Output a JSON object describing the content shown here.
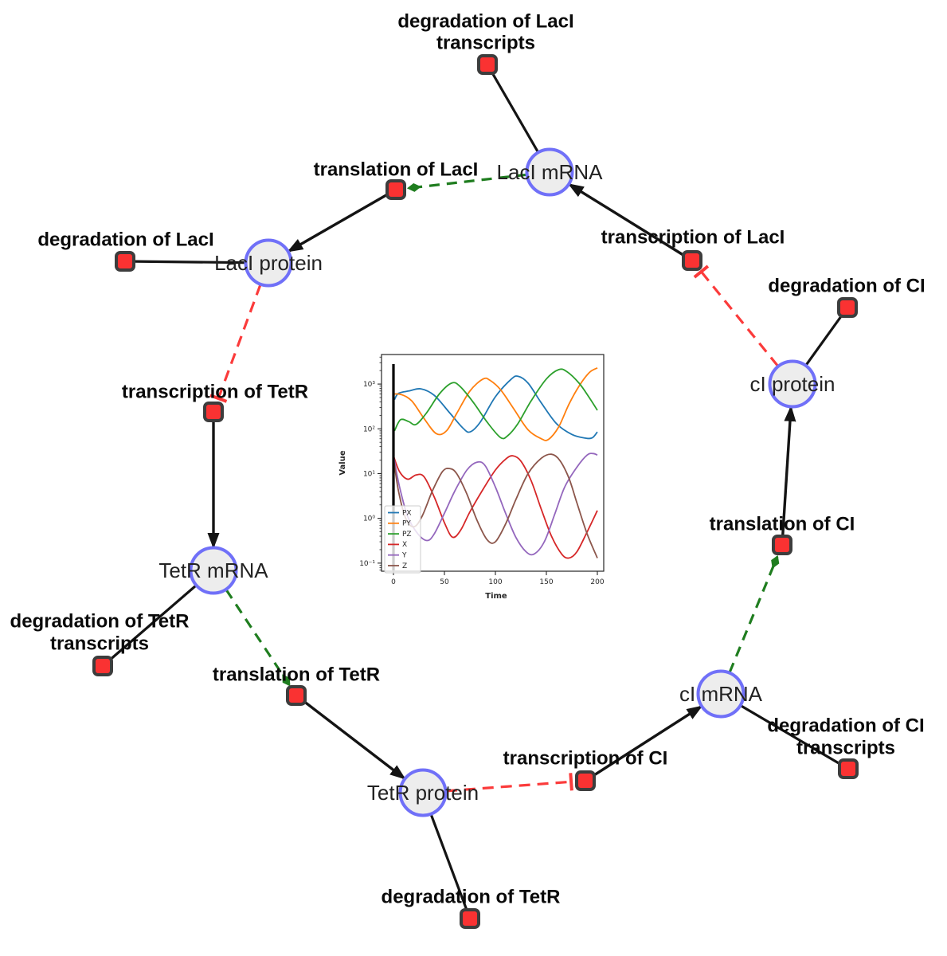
{
  "diagram": {
    "species": [
      {
        "id": "laci-mrna",
        "label": "LacI mRNA"
      },
      {
        "id": "laci-protein",
        "label": "LacI protein"
      },
      {
        "id": "tetr-mrna",
        "label": "TetR mRNA"
      },
      {
        "id": "tetr-protein",
        "label": "TetR protein"
      },
      {
        "id": "ci-mrna",
        "label": "cI mRNA"
      },
      {
        "id": "ci-protein",
        "label": "cI protein"
      }
    ],
    "reactions": [
      {
        "id": "deg-laci-transcripts",
        "lines": [
          "degradation of LacI",
          "transcripts"
        ]
      },
      {
        "id": "translation-laci",
        "lines": [
          "translation of LacI"
        ]
      },
      {
        "id": "transcription-laci",
        "lines": [
          "transcription of LacI"
        ]
      },
      {
        "id": "deg-laci",
        "lines": [
          "degradation of LacI"
        ]
      },
      {
        "id": "transcription-tetr",
        "lines": [
          "transcription of TetR"
        ]
      },
      {
        "id": "deg-tetr-transcripts",
        "lines": [
          "degradation of TetR",
          "transcripts"
        ]
      },
      {
        "id": "translation-tetr",
        "lines": [
          "translation of TetR"
        ]
      },
      {
        "id": "deg-tetr",
        "lines": [
          "degradation of TetR"
        ]
      },
      {
        "id": "transcription-ci",
        "lines": [
          "transcription of CI"
        ]
      },
      {
        "id": "deg-ci-transcripts",
        "lines": [
          "degradation of CI",
          "transcripts"
        ]
      },
      {
        "id": "translation-ci",
        "lines": [
          "translation of CI"
        ]
      },
      {
        "id": "deg-ci",
        "lines": [
          "degradation of CI"
        ]
      }
    ],
    "edge_colors": {
      "product": "#141414",
      "reactant": "#141414",
      "modifier": "#1f7d1f",
      "inhibitor": "#fb3b3b"
    },
    "node_colors": {
      "species_fill": "#ededed",
      "species_stroke": "#7070f8",
      "reaction_fill": "#fa3232",
      "reaction_stroke": "#3d3d3d"
    }
  },
  "chart_data": {
    "type": "line",
    "title": "",
    "xlabel": "Time",
    "ylabel": "Value",
    "x_axis": {
      "min": 0,
      "max": 200,
      "ticks": [
        0,
        50,
        100,
        150,
        200
      ]
    },
    "y_axis": {
      "scale": "log",
      "tick_values": [
        0.1,
        1,
        10,
        100,
        1000
      ],
      "tick_labels": [
        "10⁻¹",
        "10⁰",
        "10¹",
        "10²",
        "10³"
      ],
      "min": 0.066,
      "max": 4570
    },
    "vline_x": 0,
    "legend": {
      "position": "lower left",
      "entries": [
        "PX",
        "PY",
        "PZ",
        "X",
        "Y",
        "Z"
      ]
    },
    "series": [
      {
        "name": "PX",
        "color": "#1f77b4",
        "points": [
          [
            1,
            450
          ],
          [
            5,
            620
          ],
          [
            15,
            700
          ],
          [
            27,
            780
          ],
          [
            40,
            560
          ],
          [
            55,
            230
          ],
          [
            68,
            105
          ],
          [
            75,
            85
          ],
          [
            85,
            140
          ],
          [
            100,
            520
          ],
          [
            115,
            1250
          ],
          [
            122,
            1500
          ],
          [
            132,
            1050
          ],
          [
            145,
            380
          ],
          [
            160,
            130
          ],
          [
            175,
            75
          ],
          [
            188,
            62
          ],
          [
            195,
            63
          ],
          [
            200,
            85
          ]
        ]
      },
      {
        "name": "PY",
        "color": "#ff7f0e",
        "points": [
          [
            1,
            600
          ],
          [
            8,
            580
          ],
          [
            18,
            420
          ],
          [
            30,
            170
          ],
          [
            42,
            78
          ],
          [
            52,
            90
          ],
          [
            62,
            220
          ],
          [
            75,
            700
          ],
          [
            88,
            1300
          ],
          [
            95,
            1200
          ],
          [
            105,
            750
          ],
          [
            118,
            280
          ],
          [
            132,
            95
          ],
          [
            145,
            60
          ],
          [
            152,
            58
          ],
          [
            162,
            110
          ],
          [
            172,
            350
          ],
          [
            182,
            900
          ],
          [
            192,
            1800
          ],
          [
            200,
            2300
          ]
        ]
      },
      {
        "name": "PZ",
        "color": "#2ca02c",
        "points": [
          [
            1,
            90
          ],
          [
            7,
            160
          ],
          [
            15,
            145
          ],
          [
            22,
            125
          ],
          [
            32,
            220
          ],
          [
            45,
            600
          ],
          [
            57,
            1050
          ],
          [
            65,
            900
          ],
          [
            78,
            400
          ],
          [
            92,
            140
          ],
          [
            105,
            64
          ],
          [
            112,
            70
          ],
          [
            122,
            130
          ],
          [
            135,
            420
          ],
          [
            150,
            1300
          ],
          [
            162,
            2100
          ],
          [
            170,
            1900
          ],
          [
            182,
            1050
          ],
          [
            192,
            500
          ],
          [
            200,
            260
          ]
        ]
      },
      {
        "name": "X",
        "color": "#d62728",
        "points": [
          [
            0,
            25
          ],
          [
            6,
            11
          ],
          [
            14,
            7.5
          ],
          [
            22,
            9.3
          ],
          [
            30,
            8.5
          ],
          [
            40,
            3
          ],
          [
            50,
            0.8
          ],
          [
            58,
            0.38
          ],
          [
            66,
            0.55
          ],
          [
            75,
            1.4
          ],
          [
            88,
            4.5
          ],
          [
            100,
            12
          ],
          [
            110,
            21
          ],
          [
            117,
            25
          ],
          [
            125,
            19
          ],
          [
            135,
            7
          ],
          [
            145,
            1.6
          ],
          [
            155,
            0.4
          ],
          [
            165,
            0.16
          ],
          [
            172,
            0.13
          ],
          [
            180,
            0.18
          ],
          [
            190,
            0.5
          ],
          [
            200,
            1.5
          ]
        ]
      },
      {
        "name": "Y",
        "color": "#9467bd",
        "points": [
          [
            0,
            25
          ],
          [
            6,
            5
          ],
          [
            14,
            1.1
          ],
          [
            24,
            0.45
          ],
          [
            33,
            0.32
          ],
          [
            40,
            0.45
          ],
          [
            50,
            1.3
          ],
          [
            60,
            4
          ],
          [
            72,
            12
          ],
          [
            82,
            18
          ],
          [
            90,
            15
          ],
          [
            100,
            5
          ],
          [
            110,
            1.3
          ],
          [
            120,
            0.38
          ],
          [
            130,
            0.18
          ],
          [
            138,
            0.16
          ],
          [
            148,
            0.3
          ],
          [
            158,
            1.2
          ],
          [
            168,
            5
          ],
          [
            180,
            14
          ],
          [
            190,
            26
          ],
          [
            196,
            28
          ],
          [
            200,
            26
          ]
        ]
      },
      {
        "name": "Z",
        "color": "#8c564b",
        "points": [
          [
            0,
            22
          ],
          [
            5,
            4
          ],
          [
            12,
            1
          ],
          [
            20,
            0.65
          ],
          [
            28,
            1.1
          ],
          [
            38,
            4
          ],
          [
            48,
            11
          ],
          [
            55,
            13
          ],
          [
            62,
            10
          ],
          [
            72,
            3.5
          ],
          [
            82,
            0.9
          ],
          [
            92,
            0.33
          ],
          [
            100,
            0.3
          ],
          [
            110,
            0.75
          ],
          [
            120,
            2.6
          ],
          [
            132,
            10
          ],
          [
            145,
            22
          ],
          [
            155,
            27
          ],
          [
            163,
            20
          ],
          [
            172,
            8
          ],
          [
            180,
            2.2
          ],
          [
            190,
            0.45
          ],
          [
            200,
            0.13
          ]
        ]
      }
    ]
  }
}
